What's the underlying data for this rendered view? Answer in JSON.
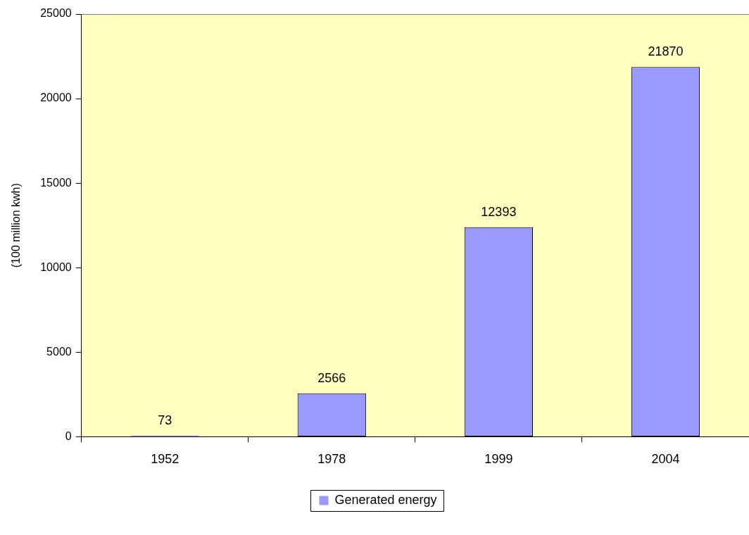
{
  "chart_data": {
    "type": "bar",
    "ylabel": "(100 million kwh)",
    "categories": [
      "1952",
      "1978",
      "1999",
      "2004"
    ],
    "series": [
      {
        "name": "Generated energy",
        "color": "#9999ff",
        "values": [
          73,
          2566,
          12393,
          21870
        ]
      }
    ],
    "ylim": [
      0,
      25000
    ],
    "yticks": [
      0,
      5000,
      10000,
      15000,
      20000,
      25000
    ],
    "data_labels": true,
    "grid": false,
    "legend": "bottom"
  }
}
